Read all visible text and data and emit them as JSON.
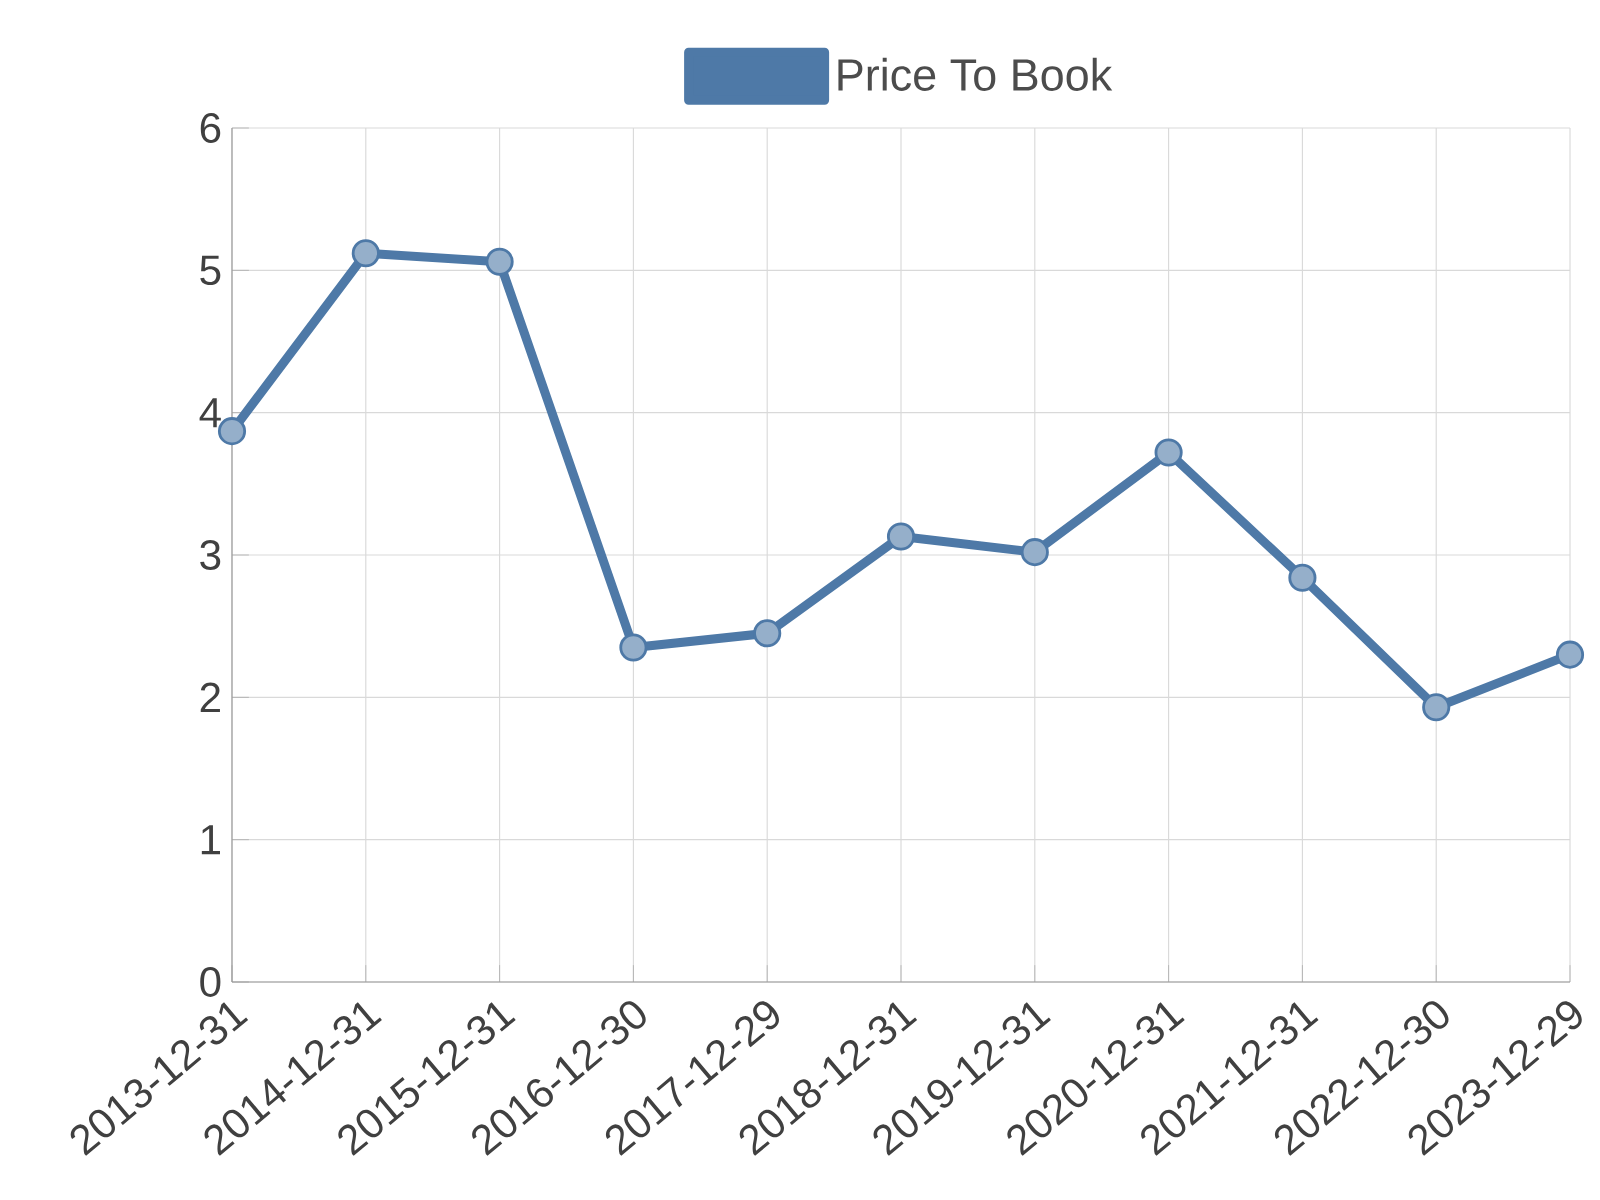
{
  "chart_data": {
    "type": "line",
    "categories": [
      "2013-12-31",
      "2014-12-31",
      "2015-12-31",
      "2016-12-30",
      "2017-12-29",
      "2018-12-31",
      "2019-12-31",
      "2020-12-31",
      "2021-12-31",
      "2022-12-30",
      "2023-12-29"
    ],
    "series": [
      {
        "name": "Price To Book",
        "color": "#4e79a7",
        "values": [
          3.87,
          5.12,
          5.06,
          2.35,
          2.45,
          3.13,
          3.02,
          3.72,
          2.84,
          1.93,
          2.3
        ]
      }
    ],
    "ylim": [
      0,
      6
    ],
    "yticks": [
      0,
      1,
      2,
      3,
      4,
      5,
      6
    ],
    "grid": true,
    "legend": "top",
    "marker": "circle",
    "line_style": "solid"
  }
}
